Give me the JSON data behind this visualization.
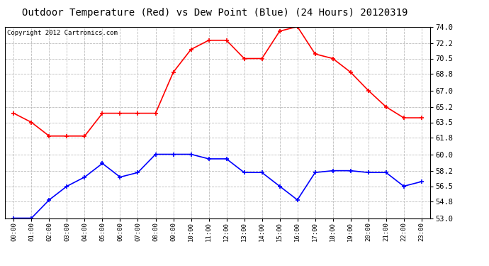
{
  "title": "Outdoor Temperature (Red) vs Dew Point (Blue) (24 Hours) 20120319",
  "copyright": "Copyright 2012 Cartronics.com",
  "x_labels": [
    "00:00",
    "01:00",
    "02:00",
    "03:00",
    "04:00",
    "05:00",
    "06:00",
    "07:00",
    "08:00",
    "09:00",
    "10:00",
    "11:00",
    "12:00",
    "13:00",
    "14:00",
    "15:00",
    "16:00",
    "17:00",
    "18:00",
    "19:00",
    "20:00",
    "21:00",
    "22:00",
    "23:00"
  ],
  "temp_red": [
    64.5,
    63.5,
    62.0,
    62.0,
    62.0,
    64.5,
    64.5,
    64.5,
    64.5,
    69.0,
    71.5,
    72.5,
    72.5,
    70.5,
    70.5,
    73.5,
    74.0,
    71.0,
    70.5,
    69.0,
    67.0,
    65.2,
    64.0,
    64.0
  ],
  "dew_blue": [
    53.0,
    53.0,
    55.0,
    56.5,
    57.5,
    59.0,
    57.5,
    58.0,
    60.0,
    60.0,
    60.0,
    59.5,
    59.5,
    58.0,
    58.0,
    56.5,
    55.0,
    58.0,
    58.2,
    58.2,
    58.0,
    58.0,
    56.5,
    57.0
  ],
  "ylim_min": 53.0,
  "ylim_max": 74.0,
  "yticks": [
    53.0,
    54.8,
    56.5,
    58.2,
    60.0,
    61.8,
    63.5,
    65.2,
    67.0,
    68.8,
    70.5,
    72.2,
    74.0
  ],
  "bg_color": "#ffffff",
  "grid_color": "#bbbbbb",
  "line_color_red": "#ff0000",
  "line_color_blue": "#0000ff",
  "title_fontsize": 10,
  "copyright_fontsize": 6.5
}
